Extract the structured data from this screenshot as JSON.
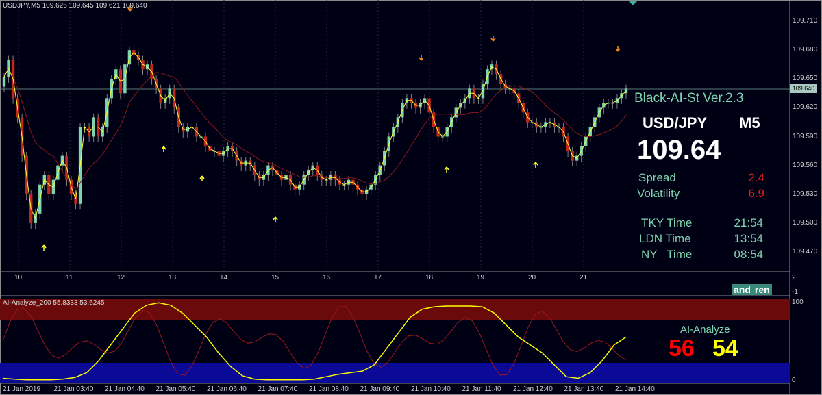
{
  "chart_header": "USDJPY,M5  109.626 109.645 109.621 109.640",
  "indicator_header": "AI-Analyze_200 55.8333 53.6245",
  "panel": {
    "title": "Black-AI-St Ver.2.3",
    "pair": "USD/JPY",
    "timeframe": "M5",
    "price": "109.64",
    "spread_label": "Spread",
    "spread_value": "2.4",
    "volatility_label": "Volatility",
    "volatility_value": "6.9",
    "tky_label": "TKY Time",
    "tky_value": "21:54",
    "ldn_label": "LDN Time",
    "ldn_value": "13:54",
    "ny_label": "NY   Time",
    "ny_value": "08:54"
  },
  "ai": {
    "label": "AI-Analyze",
    "red_value": "56",
    "yellow_value": "54"
  },
  "logo": [
    "and",
    "ren"
  ],
  "current_price_tag": "109.640",
  "colors": {
    "background": "#000014",
    "bull": "#7fd4b0",
    "bear": "#c0281c",
    "ma_fast": "#ffff30",
    "ma_slow": "#8a1a1a",
    "overbought": "#6a0a0a",
    "oversold": "#0a0a96"
  },
  "chart_data": {
    "type": "candlestick",
    "price_ticks": [
      "109.710",
      "109.680",
      "109.650",
      "109.620",
      "109.590",
      "109.560",
      "109.530",
      "109.500",
      "109.470"
    ],
    "x_ticks": [
      "10",
      "11",
      "12",
      "13",
      "14",
      "15",
      "16",
      "17",
      "18",
      "19",
      "20",
      "21"
    ],
    "indicator_ticks": [
      "100",
      "0"
    ],
    "indicator_side_ticks": [
      "2",
      "-1"
    ],
    "time_ticks": [
      "21 Jan 2019",
      "21 Jan 03:40",
      "21 Jan 04:40",
      "21 Jan 05:40",
      "21 Jan 06:40",
      "21 Jan 07:40",
      "21 Jan 08:40",
      "21 Jan 09:40",
      "21 Jan 10:40",
      "21 Jan 11:40",
      "21 Jan 12:40",
      "21 Jan 13:40",
      "21 Jan 14:40"
    ],
    "close": [
      109.652,
      109.67,
      109.63,
      109.61,
      109.57,
      109.53,
      109.5,
      109.51,
      109.54,
      109.55,
      109.53,
      109.545,
      109.56,
      109.57,
      109.545,
      109.53,
      109.52,
      109.6,
      109.6,
      109.59,
      109.61,
      109.59,
      109.6,
      109.63,
      109.65,
      109.66,
      109.635,
      109.665,
      109.68,
      109.675,
      109.67,
      109.66,
      109.665,
      109.65,
      109.64,
      109.625,
      109.63,
      109.64,
      109.62,
      109.6,
      109.595,
      109.6,
      109.6,
      109.59,
      109.59,
      109.58,
      109.575,
      109.575,
      109.57,
      109.575,
      109.58,
      109.575,
      109.565,
      109.56,
      109.565,
      109.56,
      109.55,
      109.545,
      109.55,
      109.56,
      109.555,
      109.55,
      109.545,
      109.55,
      109.54,
      109.535,
      109.54,
      109.55,
      109.555,
      109.56,
      109.55,
      109.545,
      109.545,
      109.55,
      109.545,
      109.54,
      109.54,
      109.545,
      109.54,
      109.535,
      109.53,
      109.535,
      109.54,
      109.55,
      109.56,
      109.575,
      109.59,
      109.6,
      109.61,
      109.625,
      109.63,
      109.625,
      109.62,
      109.625,
      109.63,
      109.615,
      109.6,
      109.59,
      109.59,
      109.6,
      109.61,
      109.62,
      109.625,
      109.63,
      109.64,
      109.63,
      109.63,
      109.645,
      109.66,
      109.665,
      109.655,
      109.645,
      109.64,
      109.64,
      109.635,
      109.625,
      109.615,
      109.605,
      109.605,
      109.6,
      109.6,
      109.605,
      109.605,
      109.6,
      109.6,
      109.59,
      109.575,
      109.565,
      109.57,
      109.58,
      109.59,
      109.6,
      109.61,
      109.62,
      109.625,
      109.625,
      109.625,
      109.63,
      109.635,
      109.64
    ],
    "ma_fast_series": "yellow moving average",
    "ma_slow_series": "dark red moving average",
    "indicator": {
      "name": "AI-Analyze_200",
      "values": [
        55.8333,
        53.6245
      ],
      "ylim": [
        0,
        100
      ],
      "yellow_line": [
        3,
        2,
        1,
        1,
        1,
        2,
        4,
        10,
        25,
        45,
        65,
        85,
        95,
        98,
        95,
        85,
        70,
        55,
        35,
        18,
        6,
        2,
        1,
        1,
        1,
        1,
        2,
        5,
        8,
        10,
        12,
        20,
        40,
        60,
        80,
        90,
        93,
        94,
        94,
        94,
        93,
        85,
        70,
        55,
        45,
        35,
        20,
        5,
        3,
        10,
        25,
        45,
        55
      ]
    }
  }
}
